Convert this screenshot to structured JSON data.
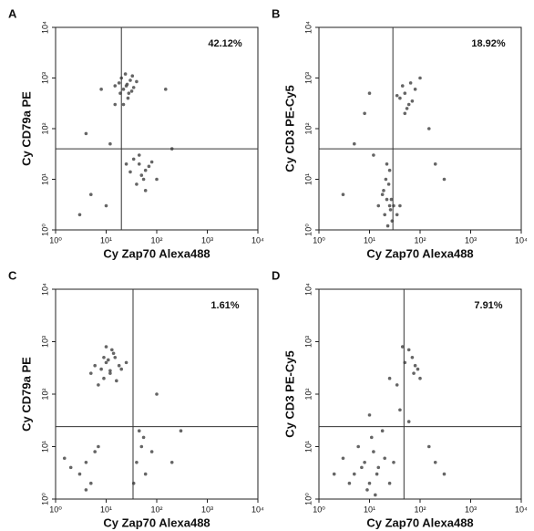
{
  "chart_data": [
    {
      "type": "scatter",
      "panel_label": "A",
      "xlabel": "Cy Zap70 Alexa488",
      "ylabel": "Cy CD79a PE",
      "annotation": "42.12%",
      "color": "#4a4a4a",
      "log_x": true,
      "log_y": true,
      "xlim": [
        1,
        10000
      ],
      "ylim": [
        1,
        10000
      ],
      "xticks": [
        {
          "value": 1,
          "label": "10⁰"
        },
        {
          "value": 10,
          "label": "10¹"
        },
        {
          "value": 100,
          "label": "10²"
        },
        {
          "value": 1000,
          "label": "10³"
        },
        {
          "value": 10000,
          "label": "10⁴"
        }
      ],
      "yticks": [
        {
          "value": 1,
          "label": "10⁰"
        },
        {
          "value": 10,
          "label": "10¹"
        },
        {
          "value": 100,
          "label": "10²"
        },
        {
          "value": 1000,
          "label": "10³"
        },
        {
          "value": 10000,
          "label": "10⁴"
        }
      ],
      "gates": {
        "x": 20,
        "y": 40
      },
      "x": [
        18,
        22,
        25,
        30,
        28,
        20,
        35,
        24,
        27,
        15,
        40,
        32,
        22,
        26,
        19,
        33,
        45,
        50,
        60,
        40,
        35,
        70,
        55,
        30,
        80,
        45,
        5,
        8,
        3,
        12,
        100,
        200,
        15,
        10,
        4,
        150,
        25,
        60
      ],
      "y": [
        800,
        600,
        700,
        900,
        500,
        1000,
        650,
        1200,
        400,
        700,
        850,
        550,
        300,
        750,
        500,
        1100,
        20,
        12,
        15,
        8,
        25,
        18,
        10,
        14,
        22,
        30,
        5,
        600,
        2,
        50,
        10,
        40,
        300,
        3,
        80,
        600,
        20,
        6
      ]
    },
    {
      "type": "scatter",
      "panel_label": "B",
      "xlabel": "Cy Zap70 Alexa488",
      "ylabel": "Cy CD3 PE-Cy5",
      "annotation": "18.92%",
      "color": "#4a4a4a",
      "log_x": true,
      "log_y": true,
      "xlim": [
        1,
        10000
      ],
      "ylim": [
        1,
        10000
      ],
      "xticks": [
        {
          "value": 1,
          "label": "10⁰"
        },
        {
          "value": 10,
          "label": "10¹"
        },
        {
          "value": 100,
          "label": "10²"
        },
        {
          "value": 1000,
          "label": "10³"
        },
        {
          "value": 10000,
          "label": "10⁴"
        }
      ],
      "yticks": [
        {
          "value": 1,
          "label": "10⁰"
        },
        {
          "value": 10,
          "label": "10¹"
        },
        {
          "value": 100,
          "label": "10²"
        },
        {
          "value": 1000,
          "label": "10³"
        },
        {
          "value": 10000,
          "label": "10⁴"
        }
      ],
      "gates": {
        "x": 29,
        "y": 40
      },
      "x": [
        40,
        50,
        60,
        45,
        70,
        55,
        35,
        80,
        50,
        65,
        20,
        25,
        22,
        28,
        18,
        24,
        30,
        26,
        21,
        23,
        19,
        27,
        25,
        22,
        15,
        35,
        5,
        3,
        150,
        300,
        10,
        100,
        40,
        200,
        12,
        8
      ],
      "y": [
        400,
        500,
        300,
        700,
        350,
        250,
        450,
        600,
        200,
        800,
        2,
        3,
        4,
        1.5,
        5,
        8,
        3,
        2.5,
        10,
        1.2,
        6,
        4,
        15,
        20,
        3,
        2,
        50,
        5,
        100,
        10,
        500,
        1000,
        3,
        20,
        30,
        200
      ]
    },
    {
      "type": "scatter",
      "panel_label": "C",
      "xlabel": "Cy Zap70 Alexa488",
      "ylabel": "Cy CD79a PE",
      "annotation": "1.61%",
      "color": "#4a4a4a",
      "log_x": true,
      "log_y": true,
      "xlim": [
        1,
        10000
      ],
      "ylim": [
        1,
        10000
      ],
      "xticks": [
        {
          "value": 1,
          "label": "10⁰"
        },
        {
          "value": 10,
          "label": "10¹"
        },
        {
          "value": 100,
          "label": "10²"
        },
        {
          "value": 1000,
          "label": "10³"
        },
        {
          "value": 10000,
          "label": "10⁴"
        }
      ],
      "yticks": [
        {
          "value": 1,
          "label": "10⁰"
        },
        {
          "value": 10,
          "label": "10¹"
        },
        {
          "value": 100,
          "label": "10²"
        },
        {
          "value": 1000,
          "label": "10³"
        },
        {
          "value": 10000,
          "label": "10⁴"
        }
      ],
      "gates": {
        "x": 34,
        "y": 24
      },
      "x": [
        8,
        10,
        12,
        15,
        6,
        9,
        14,
        11,
        20,
        7,
        13,
        25,
        5,
        18,
        10,
        16,
        9,
        12,
        3,
        4,
        5,
        6,
        2,
        7,
        4,
        40,
        50,
        60,
        45,
        80,
        35,
        55,
        200,
        100,
        1.5,
        300
      ],
      "y": [
        300,
        400,
        250,
        500,
        350,
        200,
        600,
        450,
        300,
        150,
        700,
        400,
        250,
        350,
        800,
        180,
        500,
        280,
        3,
        5,
        2,
        8,
        4,
        10,
        1.5,
        5,
        10,
        3,
        20,
        8,
        2,
        15,
        5,
        100,
        6,
        20
      ]
    },
    {
      "type": "scatter",
      "panel_label": "D",
      "xlabel": "Cy Zap70 Alexa488",
      "ylabel": "Cy CD3 PE-Cy5",
      "annotation": "7.91%",
      "color": "#4a4a4a",
      "log_x": true,
      "log_y": true,
      "xlim": [
        1,
        10000
      ],
      "ylim": [
        1,
        10000
      ],
      "xticks": [
        {
          "value": 1,
          "label": "10⁰"
        },
        {
          "value": 10,
          "label": "10¹"
        },
        {
          "value": 100,
          "label": "10²"
        },
        {
          "value": 1000,
          "label": "10³"
        },
        {
          "value": 10000,
          "label": "10⁴"
        }
      ],
      "yticks": [
        {
          "value": 1,
          "label": "10⁰"
        },
        {
          "value": 10,
          "label": "10¹"
        },
        {
          "value": 100,
          "label": "10²"
        },
        {
          "value": 1000,
          "label": "10³"
        },
        {
          "value": 10000,
          "label": "10⁴"
        }
      ],
      "gates": {
        "x": 48,
        "y": 24
      },
      "x": [
        50,
        70,
        90,
        60,
        80,
        100,
        45,
        75,
        5,
        8,
        10,
        12,
        15,
        20,
        6,
        9,
        11,
        14,
        25,
        18,
        7,
        3,
        4,
        30,
        2,
        13,
        40,
        60,
        150,
        200,
        35,
        10,
        300,
        25
      ],
      "y": [
        400,
        500,
        300,
        700,
        350,
        200,
        800,
        250,
        3,
        5,
        2,
        8,
        4,
        6,
        10,
        1.5,
        15,
        3,
        2,
        20,
        4,
        6,
        2,
        5,
        3,
        1.2,
        50,
        30,
        10,
        5,
        150,
        40,
        3,
        200
      ]
    }
  ]
}
